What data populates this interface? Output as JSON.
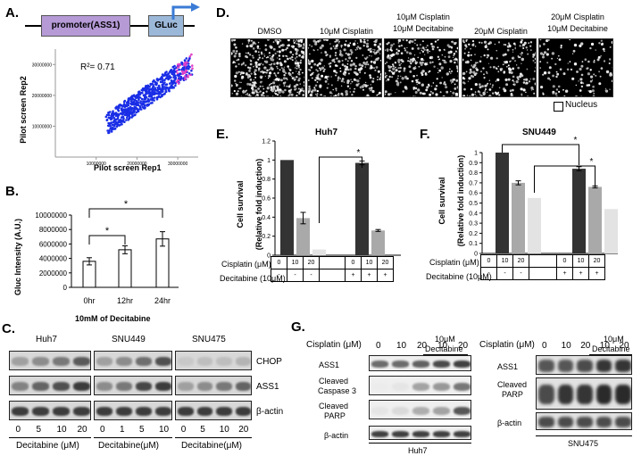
{
  "panels": {
    "A": {
      "label": "A.",
      "promoter": "promoter(ASS1)",
      "reporter": "GLuc",
      "r2": "R²= 0.71",
      "xlabel": "Pilot screen Rep1",
      "ylabel": "Pilot screen Rep2",
      "xticks": [
        "10000000",
        "20000000",
        "30000000"
      ],
      "yticks": [
        "10000000",
        "20000000",
        "30000000"
      ]
    },
    "B": {
      "label": "B.",
      "ylabel": "Gluc Intensity (A.U.)",
      "xlabel": "10mM of Decitabine",
      "sig": "*"
    },
    "C": {
      "label": "C.",
      "cells": [
        "Huh7",
        "SNU449",
        "SNU475"
      ],
      "proteins": [
        "CHOP",
        "ASS1",
        "β-actin"
      ],
      "doses_a": [
        "0",
        "5",
        "10",
        "20"
      ],
      "doses_b": [
        "0",
        "1",
        "5",
        "10"
      ],
      "doses_c": [
        "0",
        "5",
        "10",
        "20"
      ],
      "xlabel_a": "Decitabine (μM)",
      "xlabel_b": "Decitabine(μM)",
      "xlabel_c": "Decitabine(μM)"
    },
    "D": {
      "label": "D.",
      "conditions": [
        {
          "l1": "DMSO",
          "l2": ""
        },
        {
          "l1": "10μM Cisplatin",
          "l2": ""
        },
        {
          "l1": "10μM Cisplatin",
          "l2": "10μM Decitabine"
        },
        {
          "l1": "20μM Cisplatin",
          "l2": ""
        },
        {
          "l1": "20μM Cisplatin",
          "l2": "10μM Decitabine"
        }
      ],
      "legend": "Nucleus"
    },
    "E": {
      "label": "E.",
      "title": "Huh7",
      "ylabel1": "Cell survival",
      "ylabel2": "(Relative fold induction)",
      "row1": "Cisplatin (μM)",
      "row2": "Decitabine (10μM)",
      "cis": [
        "0",
        "10",
        "20",
        "",
        "0",
        "10",
        "20"
      ],
      "dec": [
        "-",
        "-",
        "-",
        "",
        "+",
        "+",
        "+"
      ],
      "sig": "*"
    },
    "F": {
      "label": "F.",
      "title": "SNU449",
      "ylabel1": "Cell survival",
      "ylabel2": "(Relative fold induction)",
      "row1": "Cisplatin (μM)",
      "row2": "Decitabine (10μM)",
      "cis": [
        "0",
        "10",
        "20",
        "",
        "0",
        "10",
        "20"
      ],
      "dec": [
        "-",
        "-",
        "-",
        "",
        "+",
        "+",
        "+"
      ],
      "sig": "*"
    },
    "G": {
      "label": "G.",
      "header": "10μM",
      "header2": "Decitabine",
      "row_label": "Cisplatin (μM)",
      "doses": [
        "0",
        "10",
        "20",
        "10",
        "20"
      ],
      "left_proteins": [
        "ASS1",
        "Cleaved",
        "Caspase 3",
        "Cleaved",
        "PARP",
        "β-actin"
      ],
      "right_proteins": [
        "ASS1",
        "Cleaved",
        "PARP",
        "β-actin"
      ],
      "left_cell": "Huh7",
      "right_cell": "SNU475"
    }
  },
  "chart_data": [
    {
      "type": "scatter",
      "panel": "A",
      "xlabel": "Pilot screen Rep1",
      "ylabel": "Pilot screen Rep2",
      "xlim": [
        0,
        35000000
      ],
      "ylim": [
        0,
        35000000
      ],
      "xticks": [
        10000000,
        20000000,
        30000000
      ],
      "yticks": [
        10000000,
        20000000,
        30000000
      ],
      "r_squared": 0.71,
      "colors": [
        "#1a2ee6",
        "#e040c8"
      ]
    },
    {
      "type": "bar",
      "panel": "B",
      "categories": [
        "0hr",
        "12hr",
        "24hr"
      ],
      "values": [
        3600000,
        5200000,
        6700000
      ],
      "errors": [
        500000,
        550000,
        1000000
      ],
      "ylabel": "Gluc Intensity (A.U.)",
      "xlabel": "10mM of Decitabine",
      "ylim": [
        0,
        10000000
      ],
      "yticks": [
        "0",
        "2000000",
        "4000000",
        "6000000",
        "8000000",
        "10000000"
      ],
      "significance": [
        [
          "0hr",
          "12hr",
          "*"
        ],
        [
          "0hr",
          "24hr",
          "*"
        ]
      ]
    },
    {
      "type": "bar",
      "panel": "E",
      "title": "Huh7",
      "values": [
        1.0,
        0.39,
        0.06,
        null,
        0.97,
        0.26,
        0.0
      ],
      "errors": [
        0,
        0.06,
        0,
        null,
        0.02,
        0.01,
        0
      ],
      "shades": [
        "#333333",
        "#a9a9a9",
        "#e3e3e3",
        null,
        "#333333",
        "#a9a9a9",
        "#e3e3e3"
      ],
      "ylim": [
        0,
        1.2
      ],
      "yticks": [
        "0",
        "0.2",
        "0.4",
        "0.6",
        "0.8",
        "1",
        "1.2"
      ],
      "significance": [
        [
          2,
          4,
          "*"
        ]
      ]
    },
    {
      "type": "bar",
      "panel": "F",
      "title": "SNU449",
      "values": [
        1.0,
        0.7,
        0.55,
        null,
        0.84,
        0.66,
        0.44
      ],
      "errors": [
        0,
        0.02,
        0,
        null,
        0.02,
        0.01,
        0
      ],
      "shades": [
        "#333333",
        "#a9a9a9",
        "#e3e3e3",
        null,
        "#333333",
        "#a9a9a9",
        "#e3e3e3"
      ],
      "ylim": [
        0,
        1
      ],
      "yticks": [
        "0",
        "0.1",
        "0.2",
        "0.3",
        "0.4",
        "0.5",
        "0.6",
        "0.7",
        "0.8",
        "0.9",
        "1"
      ],
      "significance": [
        [
          0,
          4,
          "*"
        ],
        [
          2,
          5,
          "*"
        ]
      ]
    }
  ]
}
